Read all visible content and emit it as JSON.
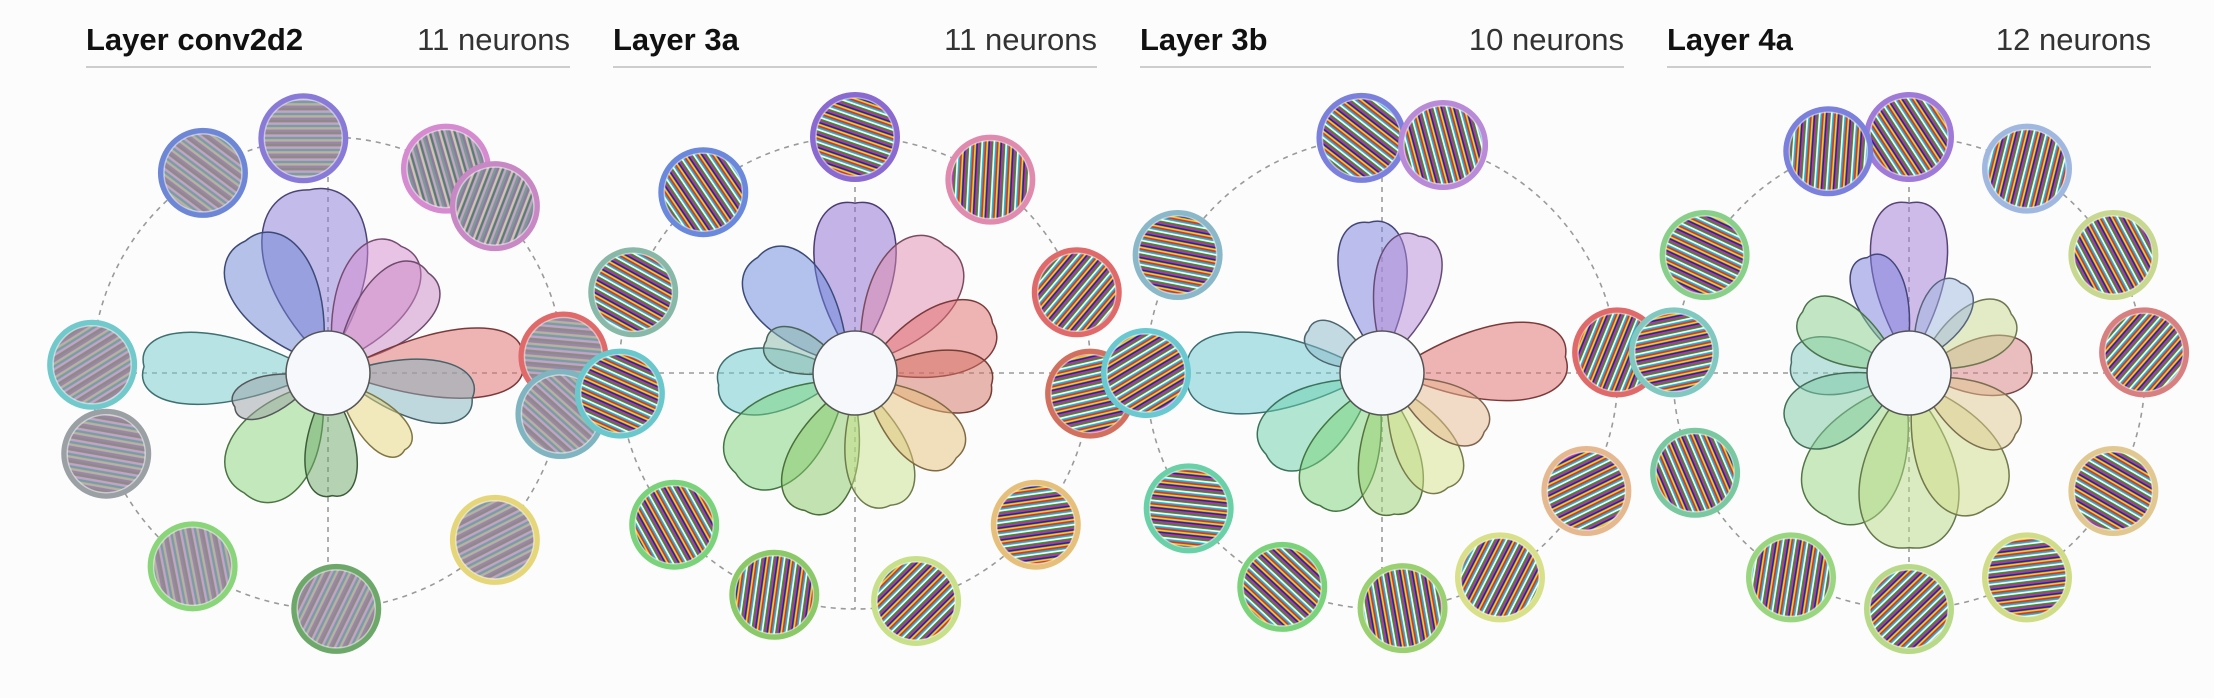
{
  "layers": [
    {
      "name": "Layer conv2d2",
      "count": "11 neurons",
      "neurons": [
        {
          "angle": 96,
          "reach": 0.78,
          "width": 36,
          "color": "#8a7ad8",
          "texture": "fine-stripes"
        },
        {
          "angle": 122,
          "reach": 0.66,
          "width": 34,
          "color": "#6d86d6",
          "texture": "fine-stripes"
        },
        {
          "angle": 60,
          "reach": 0.62,
          "width": 32,
          "color": "#d68ad0",
          "texture": "wavy-stripes"
        },
        {
          "angle": 45,
          "reach": 0.6,
          "width": 30,
          "color": "#c788c4",
          "texture": "wavy-stripes"
        },
        {
          "angle": 178,
          "reach": 0.78,
          "width": 24,
          "color": "#72c9cc",
          "texture": "fine-stripes"
        },
        {
          "angle": 4,
          "reach": 0.82,
          "width": 22,
          "color": "#e06a6a",
          "texture": "fine-stripes"
        },
        {
          "angle": 350,
          "reach": 0.62,
          "width": 26,
          "color": "#7fb4c0",
          "texture": "fine-stripes"
        },
        {
          "angle": 235,
          "reach": 0.62,
          "width": 36,
          "color": "#8ad47a",
          "texture": "fine-stripes"
        },
        {
          "angle": 272,
          "reach": 0.52,
          "width": 26,
          "color": "#6da86a",
          "texture": "fine-stripes"
        },
        {
          "angle": 315,
          "reach": 0.46,
          "width": 24,
          "color": "#e6d67a",
          "texture": "fine-stripes"
        },
        {
          "angle": 200,
          "reach": 0.42,
          "width": 24,
          "color": "#9aa0a4",
          "texture": "fine-stripes"
        }
      ]
    },
    {
      "name": "Layer 3a",
      "count": "11 neurons",
      "neurons": [
        {
          "angle": 90,
          "reach": 0.72,
          "width": 30,
          "color": "#8a6ad0",
          "texture": "rainbow-swirl"
        },
        {
          "angle": 130,
          "reach": 0.64,
          "width": 32,
          "color": "#6a88dc",
          "texture": "rainbow-swirl"
        },
        {
          "angle": 55,
          "reach": 0.66,
          "width": 34,
          "color": "#e08aae",
          "texture": "rainbow-swirl"
        },
        {
          "angle": 20,
          "reach": 0.62,
          "width": 30,
          "color": "#e06a6a",
          "texture": "rainbow-swirl"
        },
        {
          "angle": 355,
          "reach": 0.58,
          "width": 28,
          "color": "#d27060",
          "texture": "rainbow-swirl"
        },
        {
          "angle": 185,
          "reach": 0.58,
          "width": 30,
          "color": "#6ac8cc",
          "texture": "rainbow-swirl"
        },
        {
          "angle": 220,
          "reach": 0.66,
          "width": 34,
          "color": "#7ad27a",
          "texture": "rainbow-swirl"
        },
        {
          "angle": 250,
          "reach": 0.62,
          "width": 30,
          "color": "#8ac868",
          "texture": "rainbow-swirl"
        },
        {
          "angle": 285,
          "reach": 0.58,
          "width": 30,
          "color": "#c8e08a",
          "texture": "rainbow-swirl"
        },
        {
          "angle": 320,
          "reach": 0.56,
          "width": 30,
          "color": "#e6c07a",
          "texture": "rainbow-swirl"
        },
        {
          "angle": 160,
          "reach": 0.4,
          "width": 28,
          "color": "#88b8a8",
          "texture": "rainbow-swirl"
        }
      ]
    },
    {
      "name": "Layer 3b",
      "count": "10 neurons",
      "neurons": [
        {
          "angle": 95,
          "reach": 0.64,
          "width": 28,
          "color": "#7a80dc",
          "texture": "rainbow-swirl"
        },
        {
          "angle": 75,
          "reach": 0.6,
          "width": 28,
          "color": "#b88ad8",
          "texture": "rainbow-swirl"
        },
        {
          "angle": 5,
          "reach": 0.78,
          "width": 26,
          "color": "#e06a6a",
          "texture": "rainbow-swirl"
        },
        {
          "angle": 180,
          "reach": 0.82,
          "width": 26,
          "color": "#6ac8d0",
          "texture": "rainbow-swirl"
        },
        {
          "angle": 215,
          "reach": 0.6,
          "width": 32,
          "color": "#6ad0a8",
          "texture": "rainbow-swirl"
        },
        {
          "angle": 245,
          "reach": 0.62,
          "width": 30,
          "color": "#7ad27a",
          "texture": "rainbow-swirl"
        },
        {
          "angle": 275,
          "reach": 0.6,
          "width": 28,
          "color": "#9ad070",
          "texture": "rainbow-swirl"
        },
        {
          "angle": 300,
          "reach": 0.56,
          "width": 28,
          "color": "#d8e08a",
          "texture": "rainbow-swirl"
        },
        {
          "angle": 330,
          "reach": 0.5,
          "width": 28,
          "color": "#e6b890",
          "texture": "rainbow-swirl"
        },
        {
          "angle": 150,
          "reach": 0.36,
          "width": 28,
          "color": "#8ab8c8",
          "texture": "rainbow-swirl"
        }
      ]
    },
    {
      "name": "Layer 4a",
      "count": "12 neurons",
      "neurons": [
        {
          "angle": 90,
          "reach": 0.72,
          "width": 28,
          "color": "#a07ad8",
          "texture": "rainbow-swirl"
        },
        {
          "angle": 110,
          "reach": 0.52,
          "width": 26,
          "color": "#7a80dc",
          "texture": "rainbow-swirl"
        },
        {
          "angle": 5,
          "reach": 0.52,
          "width": 30,
          "color": "#d88080",
          "texture": "rainbow-swirl"
        },
        {
          "angle": 175,
          "reach": 0.5,
          "width": 30,
          "color": "#80c8c0",
          "texture": "rainbow-swirl"
        },
        {
          "angle": 150,
          "reach": 0.52,
          "width": 30,
          "color": "#88d08a",
          "texture": "rainbow-swirl"
        },
        {
          "angle": 30,
          "reach": 0.5,
          "width": 30,
          "color": "#c8d890",
          "texture": "rainbow-swirl"
        },
        {
          "angle": 240,
          "reach": 0.7,
          "width": 36,
          "color": "#9ad680",
          "texture": "rainbow-swirl"
        },
        {
          "angle": 270,
          "reach": 0.74,
          "width": 36,
          "color": "#b8da88",
          "texture": "rainbow-swirl"
        },
        {
          "angle": 300,
          "reach": 0.66,
          "width": 34,
          "color": "#d0dc88",
          "texture": "rainbow-swirl"
        },
        {
          "angle": 330,
          "reach": 0.52,
          "width": 30,
          "color": "#e0c890",
          "texture": "rainbow-swirl"
        },
        {
          "angle": 205,
          "reach": 0.56,
          "width": 32,
          "color": "#7ac8a0",
          "texture": "rainbow-swirl"
        },
        {
          "angle": 60,
          "reach": 0.44,
          "width": 28,
          "color": "#a0b8e0",
          "texture": "rainbow-swirl"
        }
      ]
    }
  ]
}
